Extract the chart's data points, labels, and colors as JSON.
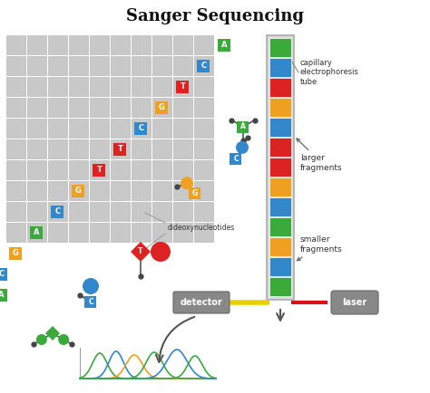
{
  "title": "Sanger Sequencing",
  "title_fontsize": 13,
  "background_color": "#ffffff",
  "colors": {
    "A": "#3aaa3a",
    "T": "#dd2222",
    "G": "#f0a020",
    "C": "#3388cc"
  },
  "grid_rows": 10,
  "grid_cols": 10,
  "diag_sequence": [
    {
      "label": "A",
      "color": "#3aaa3a"
    },
    {
      "label": "C",
      "color": "#3388cc"
    },
    {
      "label": "T",
      "color": "#dd2222"
    },
    {
      "label": "G",
      "color": "#f0a020"
    },
    {
      "label": "C",
      "color": "#3388cc"
    },
    {
      "label": "T",
      "color": "#dd2222"
    },
    {
      "label": "T",
      "color": "#dd2222"
    },
    {
      "label": "G",
      "color": "#f0a020"
    },
    {
      "label": "C",
      "color": "#3388cc"
    },
    {
      "label": "A",
      "color": "#3aaa3a"
    }
  ],
  "extra_sequence": [
    {
      "label": "G",
      "color": "#f0a020"
    },
    {
      "label": "C",
      "color": "#3388cc"
    },
    {
      "label": "A",
      "color": "#3aaa3a"
    }
  ],
  "tube_colors": [
    "#3aaa3a",
    "#3388cc",
    "#dd2222",
    "#f0a020",
    "#3388cc",
    "#dd2222",
    "#dd2222",
    "#f0a020",
    "#3388cc",
    "#3aaa3a",
    "#f0a020",
    "#3388cc",
    "#3aaa3a"
  ],
  "label_capillary": "capillary\nelectrophoresis\ntube",
  "label_larger": "larger\nfragments",
  "label_smaller": "smaller\nfragments",
  "label_detector": "detector",
  "label_laser": "laser",
  "label_dideoxy": "dideoxynucleotides",
  "chrom_peak_centers": [
    110,
    128,
    148,
    170,
    195,
    215
  ],
  "chrom_peak_colors": [
    "#3aaa3a",
    "#3388cc",
    "#f0a020",
    "#3aaa3a",
    "#3388cc",
    "#3aaa3a"
  ],
  "chrom_peak_widths": [
    8,
    8,
    9,
    9,
    11,
    8
  ],
  "chrom_peak_heights": [
    28,
    30,
    26,
    29,
    32,
    25
  ]
}
